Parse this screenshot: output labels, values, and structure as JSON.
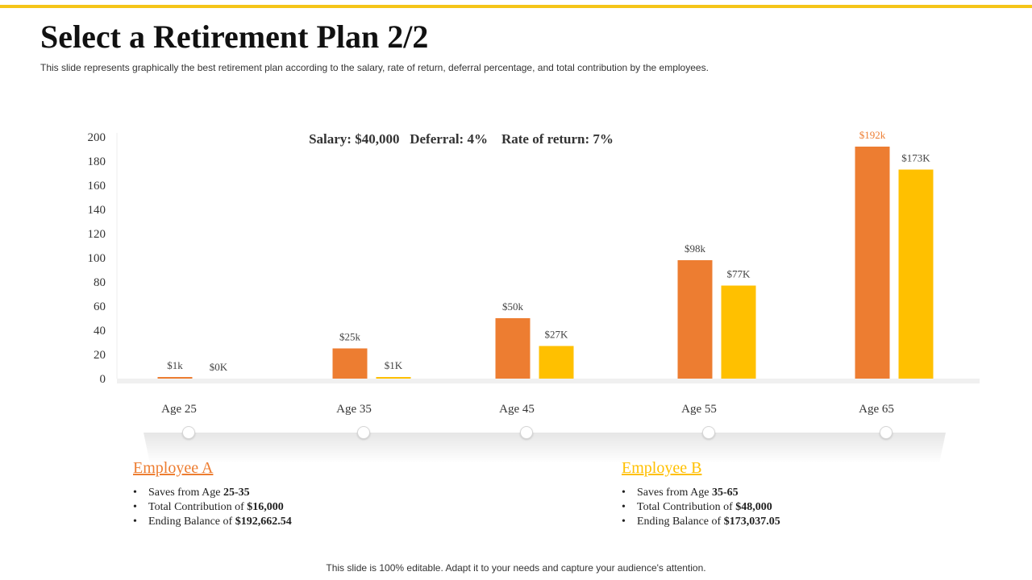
{
  "slide": {
    "title": "Select a Retirement Plan 2/2",
    "subtitle": "This slide represents graphically the best retirement plan according to the salary, rate of return, deferral  percentage, and total contribution  by the employees.",
    "footer": "This slide is 100% editable. Adapt it to your needs and capture your audience's attention.",
    "accent_color": "#F5C518"
  },
  "chart_data": {
    "type": "bar",
    "title": "Salary: $40,000   Deferral: 4%    Rate of return: 7%",
    "categories": [
      "Age 25",
      "Age 35",
      "Age 45",
      "Age 55",
      "Age 65"
    ],
    "ylim": [
      0,
      200
    ],
    "yticks": [
      0,
      20,
      40,
      60,
      80,
      100,
      120,
      140,
      160,
      180,
      200
    ],
    "xlabel": "",
    "ylabel": "",
    "grid": false,
    "series": [
      {
        "name": "Employee A",
        "color": "#ED7D31",
        "values": [
          1,
          25,
          50,
          98,
          192
        ],
        "labels": [
          "$1k",
          "$25k",
          "$50k",
          "$98k",
          "$192k"
        ]
      },
      {
        "name": "Employee B",
        "color": "#FFC000",
        "values": [
          0,
          1,
          27,
          77,
          173
        ],
        "labels": [
          "$0K",
          "$1K",
          "$27K",
          "$77K",
          "$173K"
        ]
      }
    ]
  },
  "employees": [
    {
      "name": "Employee A",
      "color": "#ED7D31",
      "items": [
        {
          "prefix": "Saves from Age ",
          "value": "25-35"
        },
        {
          "prefix": "Total Contribution  of ",
          "value": "$16,000"
        },
        {
          "prefix": "Ending Balance of ",
          "value": "$192,662.54"
        }
      ]
    },
    {
      "name": "Employee B",
      "color": "#FFC000",
      "items": [
        {
          "prefix": "Saves from Age ",
          "value": "35-65"
        },
        {
          "prefix": "Total Contribution  of ",
          "value": "$48,000"
        },
        {
          "prefix": "Ending  Balance of ",
          "value": "$173,037.05"
        }
      ]
    }
  ]
}
